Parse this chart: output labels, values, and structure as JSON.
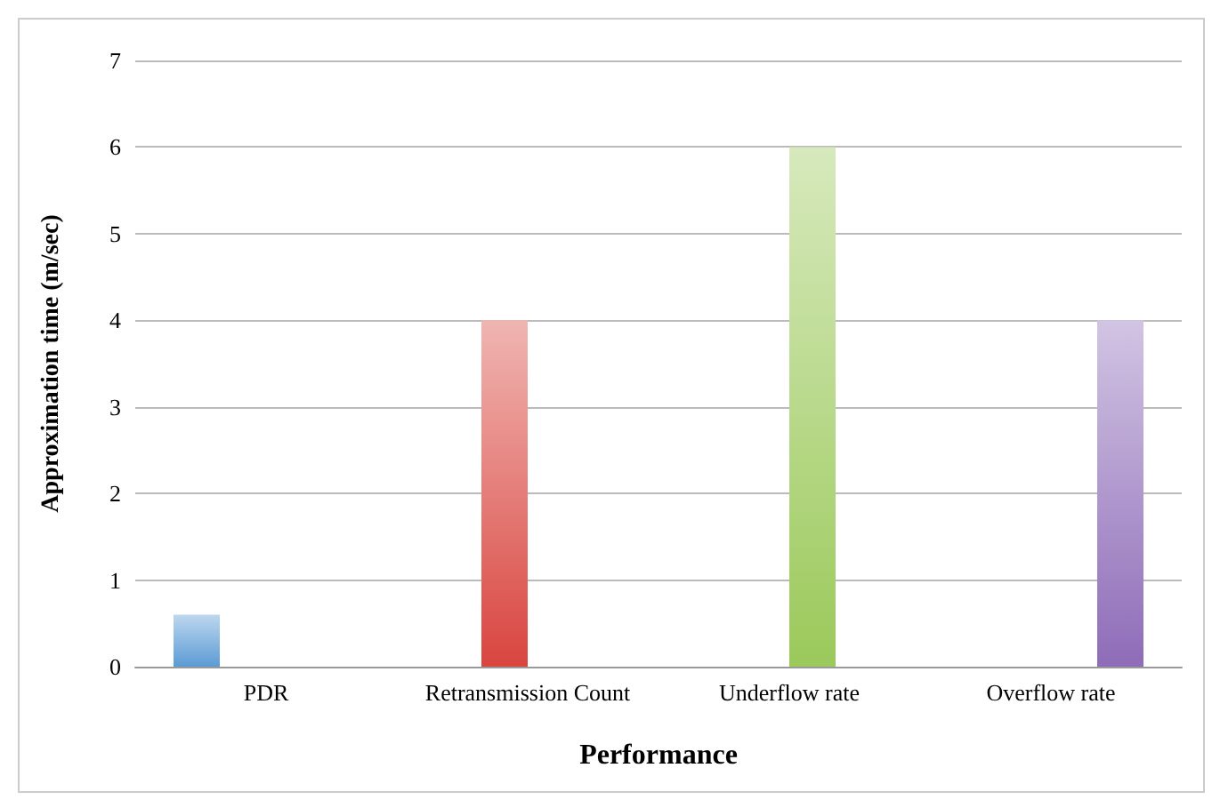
{
  "chart_data": {
    "type": "bar",
    "xlabel": "Performance",
    "ylabel": "Approximation time (m/sec)",
    "categories": [
      "PDR",
      "Retransmission Count",
      "Underflow rate",
      "Overflow rate"
    ],
    "series": [
      {
        "color": "#5b9bd5",
        "values": [
          0.6,
          null,
          null,
          null
        ]
      },
      {
        "color": "#d9453f",
        "values": [
          null,
          4,
          null,
          null
        ]
      },
      {
        "color": "#9bc95a",
        "values": [
          null,
          null,
          6,
          null
        ]
      },
      {
        "color": "#8e6cb8",
        "values": [
          null,
          null,
          null,
          4
        ]
      }
    ],
    "ylim": [
      0,
      7
    ],
    "yticks": [
      0,
      1,
      2,
      3,
      4,
      5,
      6,
      7
    ],
    "grid": "y"
  }
}
